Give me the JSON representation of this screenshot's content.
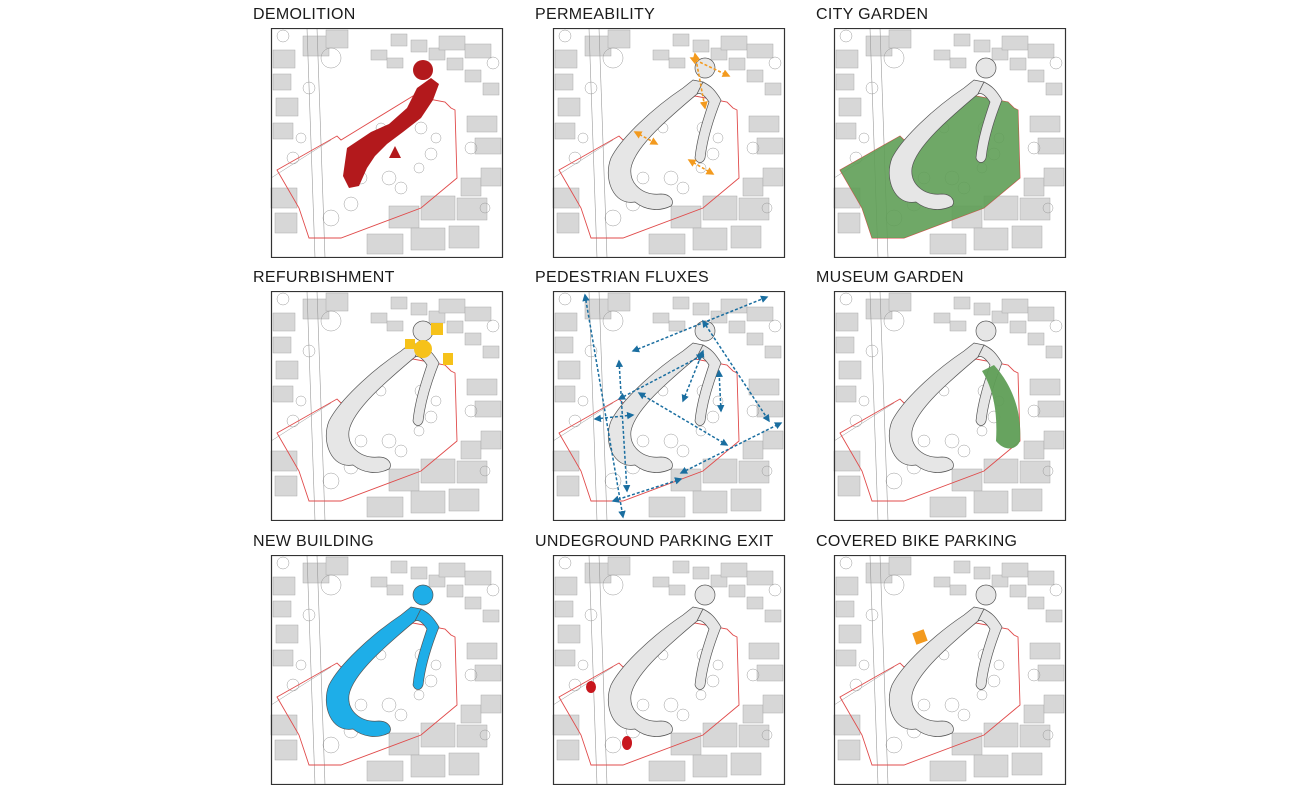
{
  "panels": [
    {
      "id": "demolition",
      "title": "DEMOLITION",
      "overlay": "demolition",
      "color": "#b3191c"
    },
    {
      "id": "permeability",
      "title": "PERMEABILITY",
      "overlay": "permeability",
      "color": "#f39a1e"
    },
    {
      "id": "city-garden",
      "title": "CITY GARDEN",
      "overlay": "city-garden",
      "color": "#5f9e56"
    },
    {
      "id": "refurbishment",
      "title": "REFURBISHMENT",
      "overlay": "refurbishment",
      "color": "#f6c21a"
    },
    {
      "id": "pedestrian-fluxes",
      "title": "PEDESTRIAN FLUXES",
      "overlay": "pedestrian",
      "color": "#1a6ea0"
    },
    {
      "id": "museum-garden",
      "title": "MUSEUM GARDEN",
      "overlay": "museum-garden",
      "color": "#5f9e56"
    },
    {
      "id": "new-building",
      "title": "NEW BUILDING",
      "overlay": "new-building",
      "color": "#1eaee8"
    },
    {
      "id": "underground-parking-exit",
      "title": "UNDEGROUND PARKING EXIT",
      "overlay": "parking-exit",
      "color": "#c8161d"
    },
    {
      "id": "covered-bike-parking",
      "title": "COVERED BIKE PARKING",
      "overlay": "bike-parking",
      "color": "#f39a1e"
    }
  ],
  "colors": {
    "block": "#d7d7d7",
    "block_stroke": "#a9a9a9",
    "site_boundary": "#e04b4b",
    "frame": "#333333",
    "building": "#e6e6e6"
  }
}
